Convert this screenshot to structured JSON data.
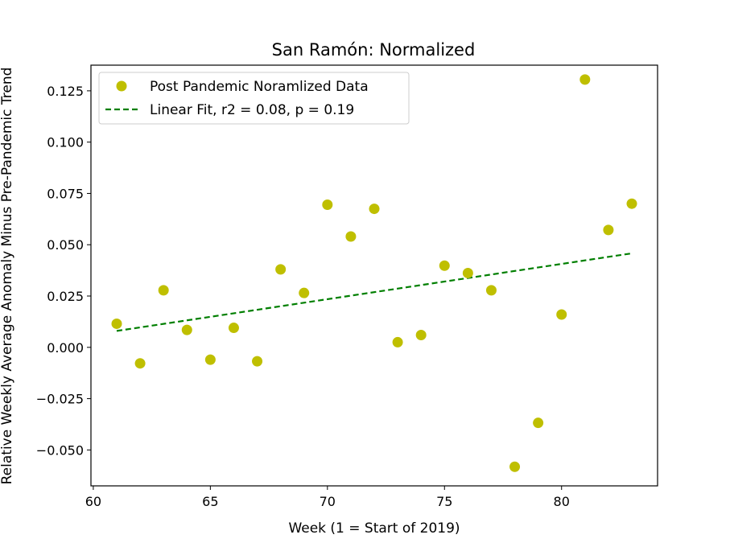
{
  "chart_data": {
    "type": "scatter",
    "title": "San Ramón: Normalized",
    "xlabel": "Week (1 = Start of 2019)",
    "ylabel": "Relative Weekly Average Anomaly Minus Pre-Pandemic Trend",
    "xlim": [
      59.9,
      84.1
    ],
    "ylim": [
      -0.0675,
      0.1375
    ],
    "xticks": [
      60,
      65,
      70,
      75,
      80
    ],
    "yticks": [
      -0.05,
      -0.025,
      0.0,
      0.025,
      0.05,
      0.075,
      0.1,
      0.125
    ],
    "ytick_labels": [
      "−0.050",
      "−0.025",
      "0.000",
      "0.025",
      "0.050",
      "0.075",
      "0.100",
      "0.125"
    ],
    "grid": false,
    "legend_position": "top-left",
    "series": [
      {
        "name": "Post Pandemic Noramlized Data",
        "kind": "scatter",
        "color": "#bfbf00",
        "x": [
          61,
          62,
          63,
          64,
          65,
          66,
          67,
          68,
          69,
          70,
          71,
          72,
          73,
          74,
          75,
          76,
          77,
          78,
          79,
          80,
          81,
          82,
          83
        ],
        "y": [
          0.0115,
          -0.0078,
          0.0278,
          0.0085,
          -0.006,
          0.0095,
          -0.0068,
          0.038,
          0.0265,
          0.0695,
          0.054,
          0.0675,
          0.0025,
          0.006,
          0.0398,
          0.0362,
          0.0278,
          -0.0582,
          -0.0368,
          0.016,
          0.1305,
          0.0572,
          0.07
        ]
      },
      {
        "name": "Linear Fit, r2 = 0.08, p = 0.19",
        "kind": "line",
        "style": "dashed",
        "color": "#007f00",
        "x": [
          61,
          83
        ],
        "y": [
          0.008,
          0.0458
        ]
      }
    ]
  }
}
